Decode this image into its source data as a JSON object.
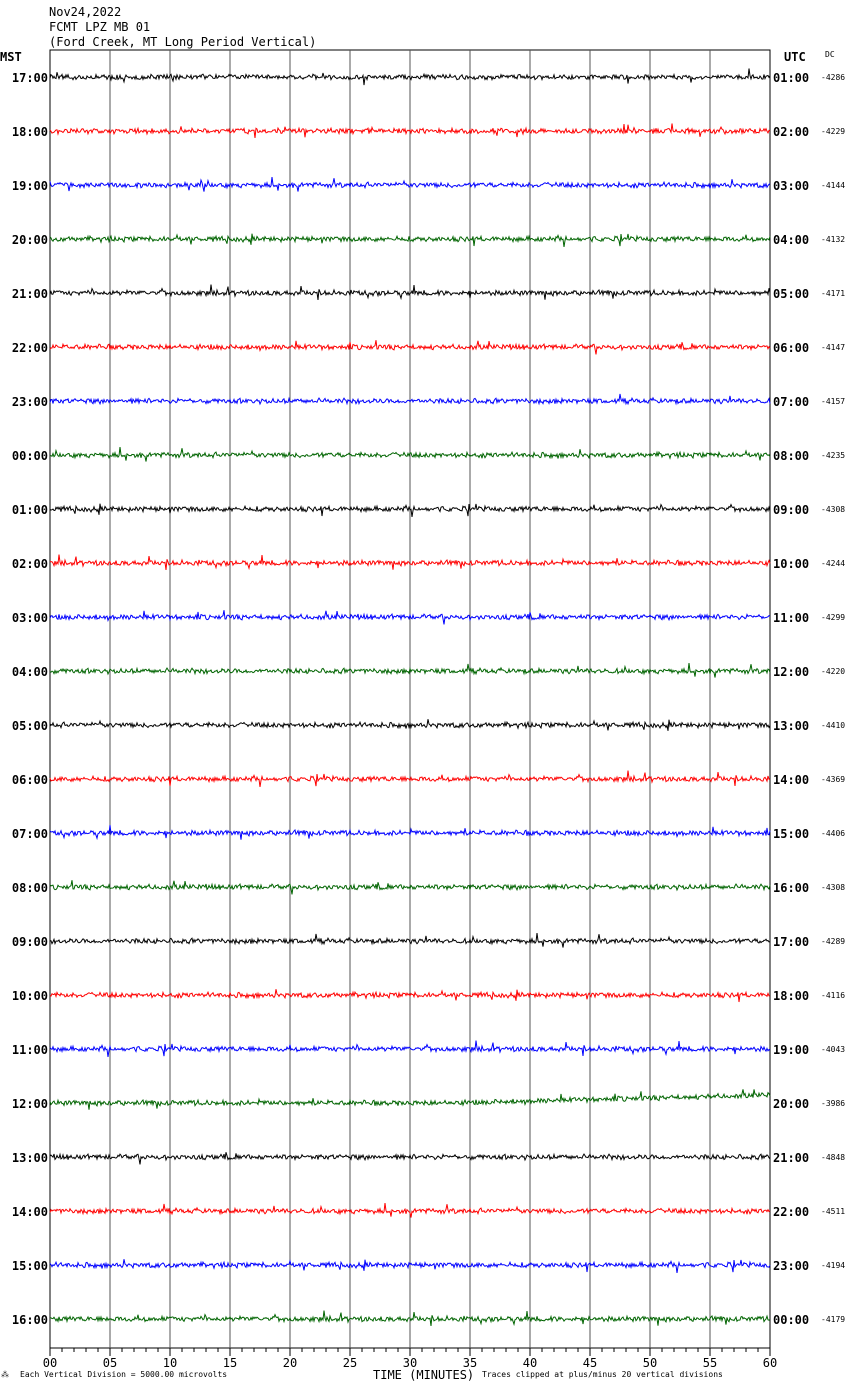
{
  "header": {
    "date": "Nov24,2022",
    "station": "FCMT LPZ MB 01",
    "location": "(Ford Creek, MT Long Period Vertical)"
  },
  "left_tz": "MST",
  "right_tz": "UTC",
  "dc_header": "DC",
  "footer": {
    "scale_note": "Each Vertical Division = 5000.00 microvolts",
    "clip_note": "Traces clipped at plus/minus 20 vertical divisions",
    "mark": "⁂"
  },
  "colors": {
    "black": "#000000",
    "red": "#ff0000",
    "blue": "#0000ff",
    "green": "#006400"
  },
  "chart_data": {
    "type": "line",
    "title": "FCMT LPZ MB 01",
    "xlabel": "TIME (MINUTES)",
    "xlim": [
      0,
      60
    ],
    "x_ticks": [
      "00",
      "05",
      "10",
      "15",
      "20",
      "25",
      "30",
      "35",
      "40",
      "45",
      "50",
      "55",
      "60"
    ],
    "grid": "vertical lines every 5 minutes",
    "color_cycle": [
      "black",
      "red",
      "blue",
      "green"
    ],
    "rows": [
      {
        "local": "17:00",
        "utc": "01:00",
        "dc": "-4286"
      },
      {
        "local": "18:00",
        "utc": "02:00",
        "dc": "-4229"
      },
      {
        "local": "19:00",
        "utc": "03:00",
        "dc": "-4144"
      },
      {
        "local": "20:00",
        "utc": "04:00",
        "dc": "-4132"
      },
      {
        "local": "21:00",
        "utc": "05:00",
        "dc": "-4171"
      },
      {
        "local": "22:00",
        "utc": "06:00",
        "dc": "-4147"
      },
      {
        "local": "23:00",
        "utc": "07:00",
        "dc": "-4157"
      },
      {
        "local": "00:00",
        "utc": "08:00",
        "dc": "-4235"
      },
      {
        "local": "01:00",
        "utc": "09:00",
        "dc": "-4308"
      },
      {
        "local": "02:00",
        "utc": "10:00",
        "dc": "-4244"
      },
      {
        "local": "03:00",
        "utc": "11:00",
        "dc": "-4299"
      },
      {
        "local": "04:00",
        "utc": "12:00",
        "dc": "-4220"
      },
      {
        "local": "05:00",
        "utc": "13:00",
        "dc": "-4410"
      },
      {
        "local": "06:00",
        "utc": "14:00",
        "dc": "-4369"
      },
      {
        "local": "07:00",
        "utc": "15:00",
        "dc": "-4406"
      },
      {
        "local": "08:00",
        "utc": "16:00",
        "dc": "-4308"
      },
      {
        "local": "09:00",
        "utc": "17:00",
        "dc": "-4289"
      },
      {
        "local": "10:00",
        "utc": "18:00",
        "dc": "-4116"
      },
      {
        "local": "11:00",
        "utc": "19:00",
        "dc": "-4043"
      },
      {
        "local": "12:00",
        "utc": "20:00",
        "dc": "-3986"
      },
      {
        "local": "13:00",
        "utc": "21:00",
        "dc": "-4848"
      },
      {
        "local": "14:00",
        "utc": "22:00",
        "dc": "-4511"
      },
      {
        "local": "15:00",
        "utc": "23:00",
        "dc": "-4194"
      },
      {
        "local": "16:00",
        "utc": "00:00",
        "dc": "-4179"
      }
    ]
  }
}
